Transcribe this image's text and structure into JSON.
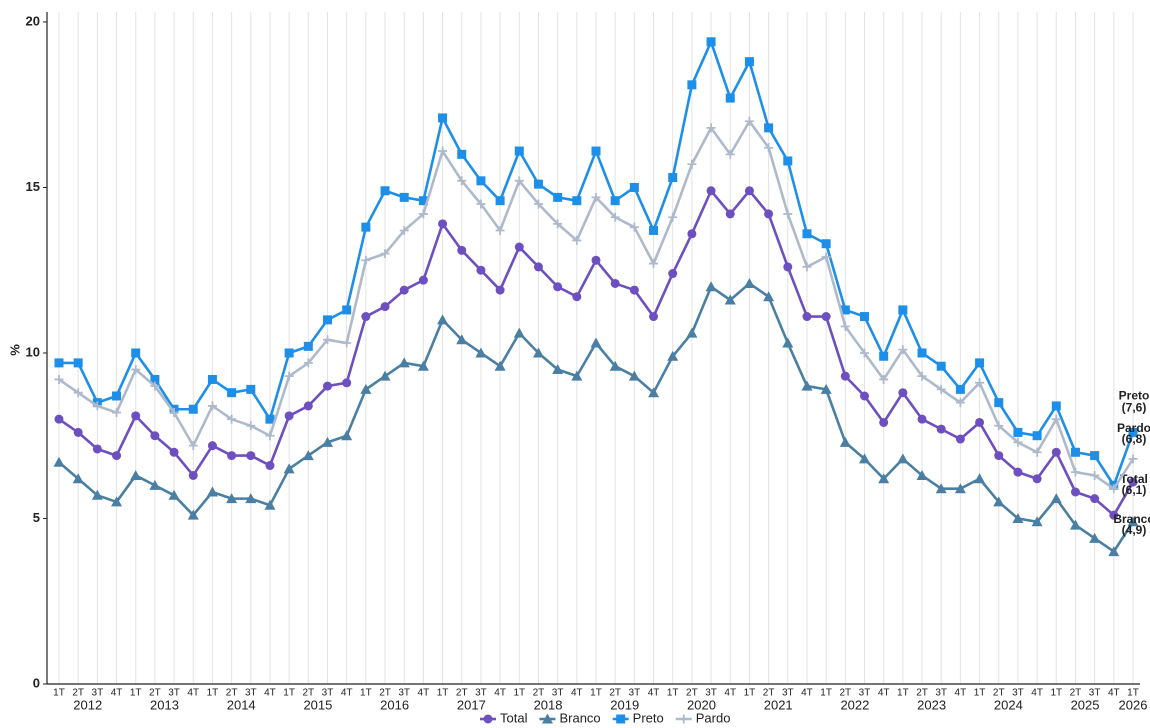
{
  "chart_data": {
    "type": "line",
    "y_label": "%",
    "categories": [
      "1T",
      "2T",
      "3T",
      "4T",
      "1T",
      "2T",
      "3T",
      "4T",
      "1T",
      "2T",
      "3T",
      "4T",
      "1T",
      "2T",
      "3T",
      "4T",
      "1T",
      "2T",
      "3T",
      "4T",
      "1T",
      "2T",
      "3T",
      "4T",
      "1T",
      "2T",
      "3T",
      "4T",
      "1T",
      "2T",
      "3T",
      "4T",
      "1T",
      "2T",
      "3T",
      "4T",
      "1T",
      "2T",
      "3T",
      "4T",
      "1T",
      "2T",
      "3T",
      "4T",
      "1T",
      "2T",
      "3T",
      "4T",
      "1T",
      "2T",
      "3T",
      "4T",
      "1T",
      "2T",
      "3T",
      "4T",
      "1T"
    ],
    "years": [
      "2012",
      "2013",
      "2014",
      "2015",
      "2016",
      "2017",
      "2018",
      "2019",
      "2020",
      "2021",
      "2022",
      "2023",
      "2024",
      "2025",
      "2026"
    ],
    "ylim": [
      0,
      20.3
    ],
    "yticks": [
      0,
      5,
      10,
      15,
      20
    ],
    "grid": "vertical",
    "series": [
      {
        "name": "Total",
        "color": "#6e4fc0",
        "marker": "circle",
        "end_label": "(6,1)",
        "values": [
          8.0,
          7.6,
          7.1,
          6.9,
          8.1,
          7.5,
          7.0,
          6.3,
          7.2,
          6.9,
          6.9,
          6.6,
          8.1,
          8.4,
          9.0,
          9.1,
          11.1,
          11.4,
          11.9,
          12.2,
          13.9,
          13.1,
          12.5,
          11.9,
          13.2,
          12.6,
          12.0,
          11.7,
          12.8,
          12.1,
          11.9,
          11.1,
          12.4,
          13.6,
          14.9,
          14.2,
          14.9,
          14.2,
          12.6,
          11.1,
          11.1,
          9.3,
          8.7,
          7.9,
          8.8,
          8.0,
          7.7,
          7.4,
          7.9,
          6.9,
          6.4,
          6.2,
          7.0,
          5.8,
          5.6,
          5.1,
          6.1
        ]
      },
      {
        "name": "Branco",
        "color": "#4a7fa3",
        "marker": "triangle",
        "end_label": "(4,9)",
        "values": [
          6.7,
          6.2,
          5.7,
          5.5,
          6.3,
          6.0,
          5.7,
          5.1,
          5.8,
          5.6,
          5.6,
          5.4,
          6.5,
          6.9,
          7.3,
          7.5,
          8.9,
          9.3,
          9.7,
          9.6,
          11.0,
          10.4,
          10.0,
          9.6,
          10.6,
          10.0,
          9.5,
          9.3,
          10.3,
          9.6,
          9.3,
          8.8,
          9.9,
          10.6,
          12.0,
          11.6,
          12.1,
          11.7,
          10.3,
          9.0,
          8.9,
          7.3,
          6.8,
          6.2,
          6.8,
          6.3,
          5.9,
          5.9,
          6.2,
          5.5,
          5.0,
          4.9,
          5.6,
          4.8,
          4.4,
          4.0,
          4.9
        ]
      },
      {
        "name": "Preto",
        "color": "#1e8fe8",
        "marker": "square",
        "end_label": "(7,6)",
        "values": [
          9.7,
          9.7,
          8.5,
          8.7,
          10.0,
          9.2,
          8.3,
          8.3,
          9.2,
          8.8,
          8.9,
          8.0,
          10.0,
          10.2,
          11.0,
          11.3,
          13.8,
          14.9,
          14.7,
          14.6,
          17.1,
          16.0,
          15.2,
          14.6,
          16.1,
          15.1,
          14.7,
          14.6,
          16.1,
          14.6,
          15.0,
          13.7,
          15.3,
          18.1,
          19.4,
          17.7,
          18.8,
          16.8,
          15.8,
          13.6,
          13.3,
          11.3,
          11.1,
          9.9,
          11.3,
          10.0,
          9.6,
          8.9,
          9.7,
          8.5,
          7.6,
          7.5,
          8.4,
          7.0,
          6.9,
          6.0,
          7.6
        ]
      },
      {
        "name": "Pardo",
        "color": "#aebacb",
        "marker": "plus",
        "end_label": "(6,8)",
        "values": [
          9.2,
          8.8,
          8.4,
          8.2,
          9.5,
          9.0,
          8.2,
          7.2,
          8.4,
          8.0,
          7.8,
          7.5,
          9.3,
          9.7,
          10.4,
          10.3,
          12.8,
          13.0,
          13.7,
          14.2,
          16.1,
          15.2,
          14.5,
          13.7,
          15.2,
          14.5,
          13.9,
          13.4,
          14.7,
          14.1,
          13.8,
          12.7,
          14.1,
          15.7,
          16.8,
          16.0,
          17.0,
          16.2,
          14.2,
          12.6,
          12.9,
          10.8,
          10.0,
          9.2,
          10.1,
          9.3,
          8.9,
          8.5,
          9.1,
          7.8,
          7.3,
          7.0,
          8.0,
          6.4,
          6.3,
          5.9,
          6.8
        ]
      }
    ]
  }
}
